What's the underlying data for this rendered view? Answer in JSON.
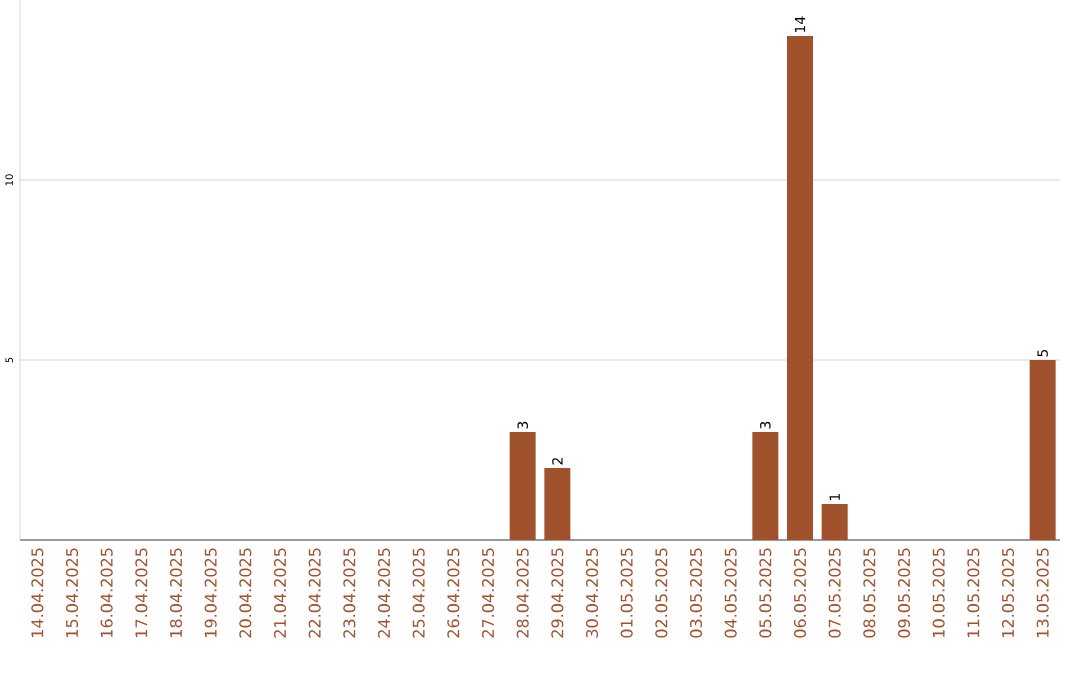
{
  "chart_data": {
    "type": "bar",
    "categories": [
      "14.04.2025",
      "15.04.2025",
      "16.04.2025",
      "17.04.2025",
      "18.04.2025",
      "19.04.2025",
      "20.04.2025",
      "21.04.2025",
      "22.04.2025",
      "23.04.2025",
      "24.04.2025",
      "25.04.2025",
      "26.04.2025",
      "27.04.2025",
      "28.04.2025",
      "29.04.2025",
      "30.04.2025",
      "01.05.2025",
      "02.05.2025",
      "03.05.2025",
      "04.05.2025",
      "05.05.2025",
      "06.05.2025",
      "07.05.2025",
      "08.05.2025",
      "09.05.2025",
      "10.05.2025",
      "11.05.2025",
      "12.05.2025",
      "13.05.2025"
    ],
    "values": [
      0,
      0,
      0,
      0,
      0,
      0,
      0,
      0,
      0,
      0,
      0,
      0,
      0,
      0,
      3,
      2,
      0,
      0,
      0,
      0,
      0,
      3,
      14,
      1,
      0,
      0,
      0,
      0,
      0,
      5
    ],
    "value_labels": [
      null,
      null,
      null,
      null,
      null,
      null,
      null,
      null,
      null,
      null,
      null,
      null,
      null,
      null,
      "3",
      "2",
      null,
      null,
      null,
      null,
      null,
      "3",
      "14",
      "1",
      null,
      null,
      null,
      null,
      null,
      "5"
    ],
    "color": "#a0522d",
    "ylim": [
      0,
      15
    ],
    "yticks": [
      5,
      10
    ],
    "grid": "y"
  }
}
